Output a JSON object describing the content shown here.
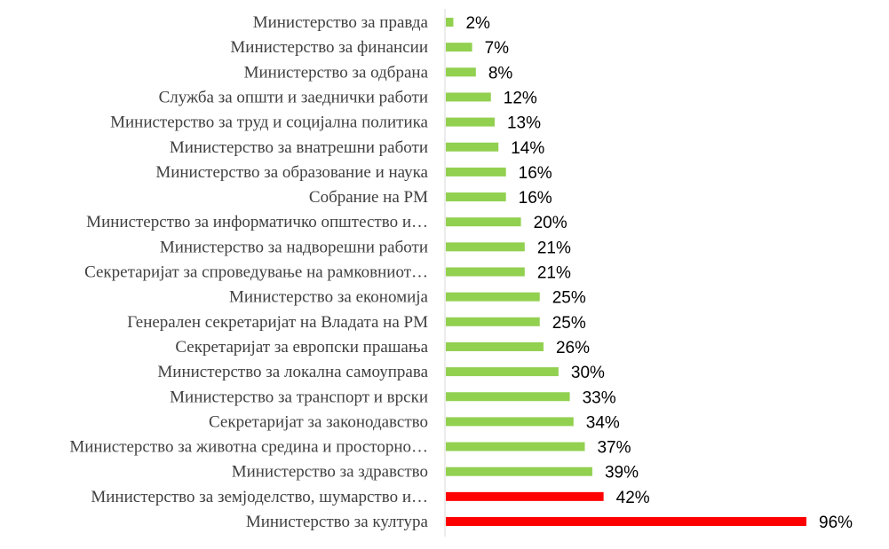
{
  "chart_data": {
    "type": "bar",
    "orientation": "horizontal",
    "title": "",
    "xlabel": "",
    "ylabel": "",
    "xlim": [
      0,
      100
    ],
    "grid": false,
    "legend": "none",
    "value_suffix": "%",
    "colors": {
      "default": "#92d050",
      "highlight": "#ff0000",
      "axis": "#d9d9d9"
    },
    "categories": [
      "Министерство за правда",
      "Министерство за финансии",
      "Министерство за одбрана",
      "Служба за општи и заеднички работи",
      "Министерство за труд и социјална политика",
      "Министерство за внатрешни работи",
      "Министерство за образование и наука",
      "Собрание на РМ",
      "Министерство за информатичко општество и…",
      "Министерство за надворешни работи",
      "Секретаријат за спроведување на рамковниот…",
      "Министерство за економија",
      "Генерален секретаријат на Владата на РМ",
      "Секретаријат за европски прашања",
      "Министерство за локална самоуправа",
      "Министерство за транспорт и врски",
      "Секретаријат за законодавство",
      "Министерство за животна средина и просторно…",
      "Министерство за здравство",
      "Министерство за земјоделство, шумарство и…",
      "Министерство за култура"
    ],
    "values": [
      2,
      7,
      8,
      12,
      13,
      14,
      16,
      16,
      20,
      21,
      21,
      25,
      25,
      26,
      30,
      33,
      34,
      37,
      39,
      42,
      96
    ],
    "value_labels": [
      "2%",
      "7%",
      "8%",
      "12%",
      "13%",
      "14%",
      "16%",
      "16%",
      "20%",
      "21%",
      "21%",
      "25%",
      "25%",
      "26%",
      "30%",
      "33%",
      "34%",
      "37%",
      "39%",
      "42%",
      "96%"
    ],
    "highlighted": [
      false,
      false,
      false,
      false,
      false,
      false,
      false,
      false,
      false,
      false,
      false,
      false,
      false,
      false,
      false,
      false,
      false,
      false,
      false,
      true,
      true
    ]
  }
}
